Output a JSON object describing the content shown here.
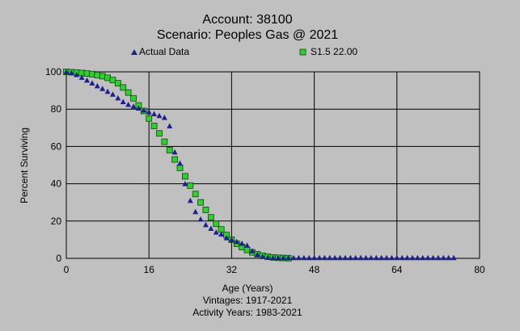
{
  "chart_data": {
    "type": "scatter",
    "title": "Account: 38100",
    "subtitle": "Scenario: Peoples Gas @ 2021",
    "xlabel": "Age (Years)",
    "ylabel": "Percent Surviving",
    "xlim": [
      0,
      80
    ],
    "ylim": [
      0,
      100
    ],
    "xticks": [
      "0",
      "16",
      "32",
      "48",
      "64",
      "80"
    ],
    "yticks": [
      "0",
      "20",
      "40",
      "60",
      "80",
      "100"
    ],
    "grid": true,
    "legend_position": "top",
    "footnotes": [
      "Vintages: 1917-2021",
      "Activity Years: 1983-2021"
    ],
    "series": [
      {
        "name": "Actual Data",
        "marker": "triangle",
        "color": "#1f1f8f",
        "x": [
          0,
          1,
          2,
          3,
          4,
          5,
          6,
          7,
          8,
          9,
          10,
          11,
          12,
          13,
          14,
          15,
          16,
          17,
          18,
          19,
          20,
          21,
          22,
          23,
          24,
          25,
          26,
          27,
          28,
          29,
          30,
          31,
          32,
          33,
          34,
          35,
          36,
          37,
          38,
          39,
          40,
          41,
          42,
          43,
          44,
          45,
          46,
          47,
          48,
          49,
          50,
          51,
          52,
          53,
          54,
          55,
          56,
          57,
          58,
          59,
          60,
          61,
          62,
          63,
          64,
          65,
          66,
          67,
          68,
          69,
          70,
          71,
          72,
          73,
          74,
          75
        ],
        "y": [
          100,
          99.5,
          98.5,
          97,
          95.5,
          94,
          92.5,
          91,
          89.5,
          88,
          86,
          84,
          82.5,
          81.5,
          80.5,
          79.5,
          78.5,
          77.5,
          76.5,
          75.5,
          71,
          57,
          51,
          40,
          31,
          25,
          21,
          18,
          16,
          14,
          13,
          11,
          10,
          9,
          8,
          7,
          4,
          2,
          1,
          0.5,
          0.3,
          0.3,
          0.3,
          0.3,
          0.3,
          0.3,
          0.3,
          0.3,
          0.3,
          0.3,
          0.3,
          0.3,
          0.3,
          0.3,
          0.3,
          0.3,
          0.3,
          0.3,
          0.3,
          0.3,
          0.3,
          0.3,
          0.3,
          0.3,
          0.3,
          0.3,
          0.3,
          0.3,
          0.3,
          0.3,
          0.3,
          0.3,
          0.3,
          0.3,
          0.3,
          0.3
        ]
      },
      {
        "name": "S1.5 22.00",
        "marker": "square",
        "color": "#33cc33",
        "x": [
          0,
          1,
          2,
          3,
          4,
          5,
          6,
          7,
          8,
          9,
          10,
          11,
          12,
          13,
          14,
          15,
          16,
          17,
          18,
          19,
          20,
          21,
          22,
          23,
          24,
          25,
          26,
          27,
          28,
          29,
          30,
          31,
          32,
          33,
          34,
          35,
          36,
          37,
          38,
          39,
          40,
          41,
          42,
          43
        ],
        "y": [
          100,
          99.8,
          99.6,
          99.4,
          99.1,
          98.8,
          98.3,
          97.7,
          96.8,
          95.6,
          93.9,
          91.6,
          88.9,
          85.8,
          82,
          79,
          75,
          71,
          67,
          62.5,
          58,
          53,
          48.5,
          44,
          39,
          34.5,
          30,
          26,
          22,
          18.5,
          15.5,
          12.5,
          10,
          7.8,
          6,
          4.5,
          3.2,
          2.2,
          1.4,
          0.9,
          0.5,
          0.3,
          0.2,
          0.1
        ]
      }
    ]
  }
}
